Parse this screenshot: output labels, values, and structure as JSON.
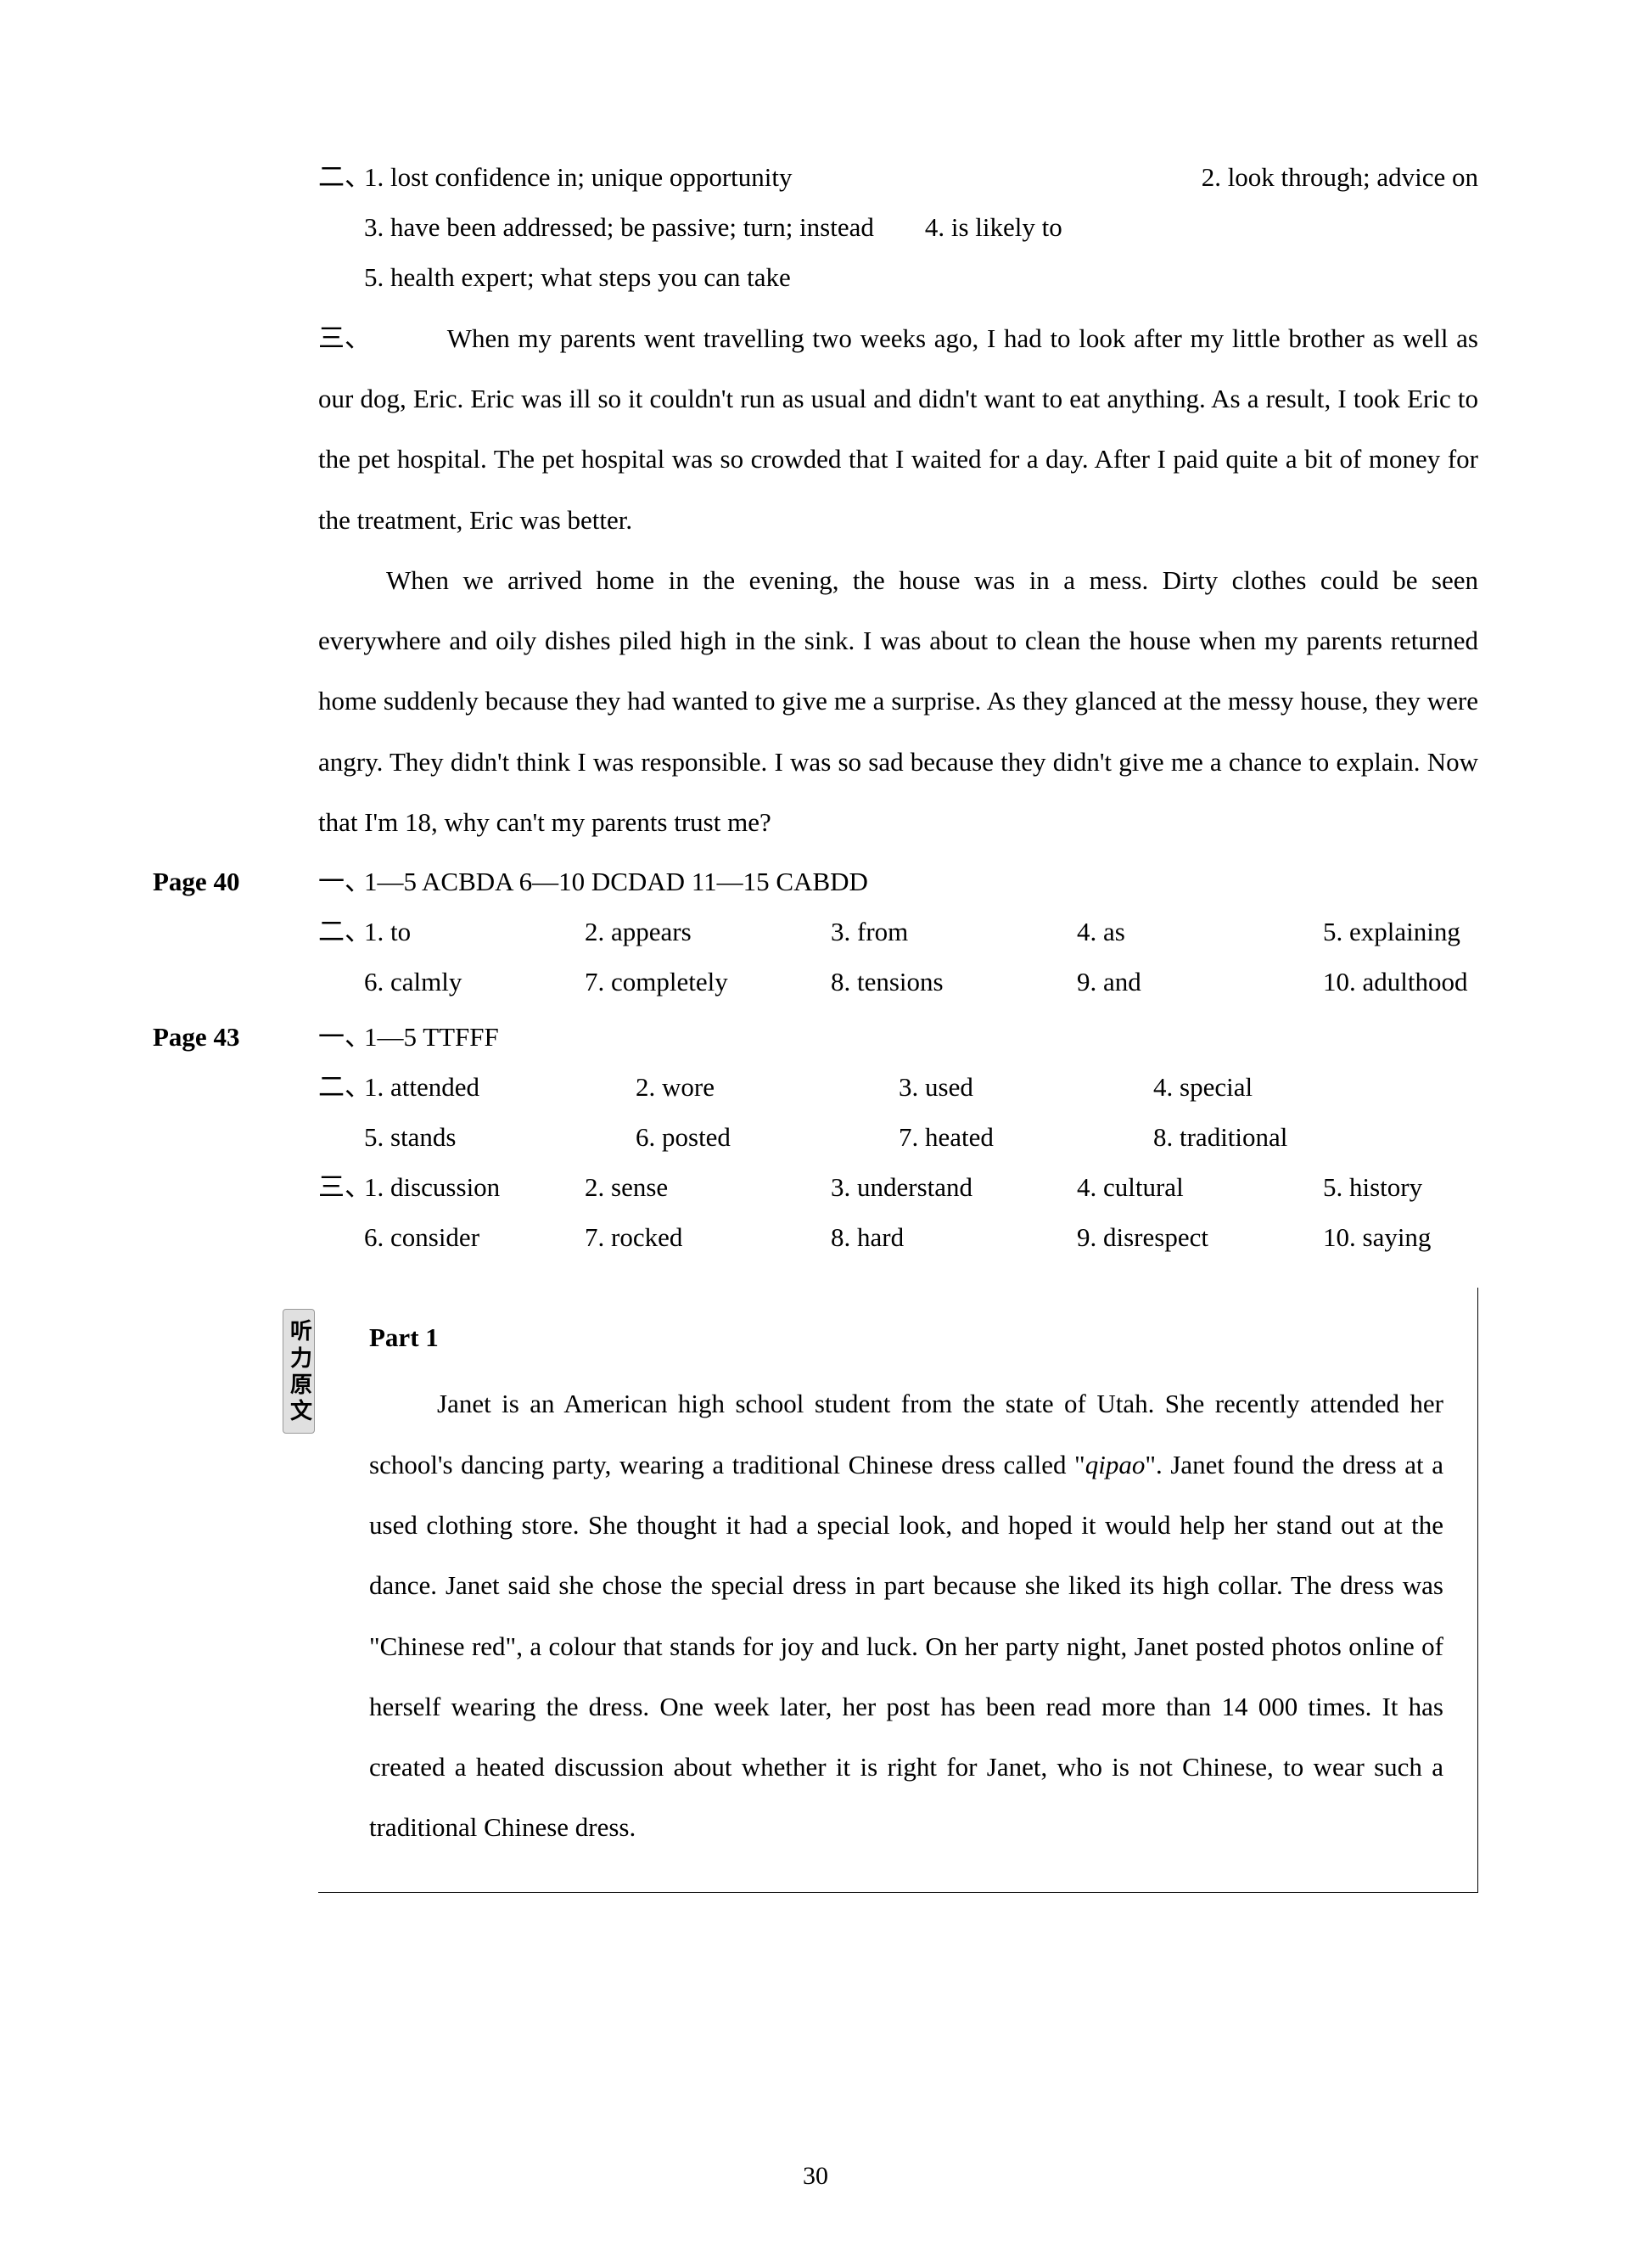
{
  "colors": {
    "text": "#000000",
    "background": "#ffffff",
    "tab_bg": "#e0e0e0",
    "tab_border": "#999999"
  },
  "typography": {
    "font_family": "Times New Roman",
    "base_fontsize": 31,
    "line_height_normal": 1.9,
    "line_height_essay": 2.3
  },
  "top_section": {
    "marker_2": "二、",
    "items": [
      "1. lost confidence in; unique opportunity",
      "2. look through; advice on",
      "3. have been addressed; be passive; turn; instead",
      "4. is likely to",
      "5. health expert; what steps you can take"
    ],
    "marker_3": "三、",
    "essay_p1": "When my parents went travelling two weeks ago, I had to look after my little brother as well as our dog, Eric. Eric was ill so it couldn't run as usual and didn't want to eat anything. As a result, I took Eric to the pet hospital. The pet hospital was so crowded that I waited for a day. After I paid quite a bit of money for the treatment, Eric was better.",
    "essay_p2": "When we arrived home in the evening, the house was in a mess. Dirty clothes could be seen everywhere and oily dishes piled high in the sink. I was about to clean the house when my parents returned home suddenly because they had wanted to give me a surprise. As they glanced at the messy house, they were angry. They didn't think I was responsible. I was so sad because they didn't give me a chance to explain. Now that I'm 18, why can't my parents trust me?"
  },
  "page40": {
    "label": "Page 40",
    "marker_1": "一、",
    "line1": "1—5  ACBDA   6—10   DCDAD   11—15   CABDD",
    "marker_2": "二、",
    "row1": [
      "1. to",
      "2. appears",
      "3. from",
      "4. as",
      "5. explaining"
    ],
    "row2": [
      "6. calmly",
      "7. completely",
      "8. tensions",
      "9. and",
      "10. adulthood"
    ]
  },
  "page43": {
    "label": "Page 43",
    "marker_1": "一、",
    "line1": "1—5  TTFFF",
    "marker_2": "二、",
    "row_a1": [
      "1.  attended",
      "2.  wore",
      "3.  used",
      "4.  special"
    ],
    "row_a2": [
      "5.  stands",
      "6.  posted",
      "7.  heated",
      "8.  traditional"
    ],
    "marker_3": "三、",
    "row_b1": [
      "1.  discussion",
      "2.  sense",
      "3.  understand",
      "4.  cultural",
      "5.  history"
    ],
    "row_b2": [
      "6.  consider",
      "7.  rocked",
      "8.  hard",
      "9.  disrespect",
      "10.  saying"
    ]
  },
  "listening": {
    "tab": "听力原文",
    "part_title": "Part 1",
    "text_pre": "Janet is an American high school student from the state of Utah. She recently attended her school's dancing party, wearing a traditional Chinese dress called \"",
    "text_italic": "qipao",
    "text_post": "\". Janet found the dress at a used clothing store. She thought it had a special look, and hoped it would help her stand out at the dance. Janet said she chose the special dress in part because she liked its high collar. The dress was \"Chinese red\", a colour that stands for joy and luck. On her party night, Janet posted photos online of herself wearing the dress. One week later, her post has been read more than 14 000 times. It has created a heated discussion about whether it is right for Janet, who is not Chinese, to wear such a traditional Chinese dress."
  },
  "page_number": "30"
}
